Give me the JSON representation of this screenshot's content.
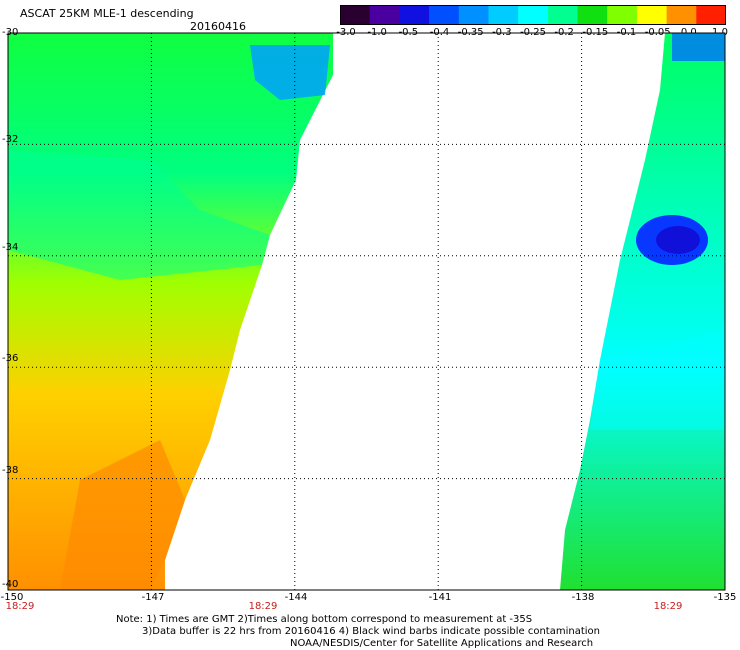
{
  "header": {
    "title": "ASCAT 25KM MLE-1 descending",
    "date": "20160416"
  },
  "colorbar": {
    "labels": [
      "-3.0",
      "-1.0",
      "-0.5",
      "-0.4",
      "-0.35",
      "-0.3",
      "-0.25",
      "-0.2",
      "-0.15",
      "-0.1",
      "-0.05",
      "0.0",
      "1.0"
    ],
    "colors": [
      "#2a0030",
      "#4a00a0",
      "#1010e0",
      "#0050ff",
      "#0090ff",
      "#00ccff",
      "#00ffff",
      "#00ff90",
      "#10e010",
      "#80ff00",
      "#ffff00",
      "#ff9000",
      "#ff2000"
    ]
  },
  "axes": {
    "lat_labels": [
      "-30",
      "-32",
      "-34",
      "-36",
      "-38",
      "-40"
    ],
    "lon_labels": [
      "-150",
      "-147",
      "-144",
      "-141",
      "-138",
      "-135"
    ],
    "time_labels": [
      "18:29",
      "18:29",
      "18:29"
    ]
  },
  "map_data": {
    "lon_range": [
      -150,
      -135
    ],
    "lat_range": [
      -40,
      -30
    ],
    "grid": "dotted",
    "swaths": [
      {
        "name": "west",
        "edge_lon_at_top": -143.5,
        "edge_lon_at_bottom": -146.7,
        "typical_value_north": "-0.2",
        "typical_value_south": "-0.05"
      },
      {
        "name": "east",
        "edge_lon_at_top": -136.0,
        "edge_lon_at_bottom": -138.5,
        "typical_value": "-0.2",
        "low_region_value": "-0.5"
      }
    ]
  },
  "notes": {
    "line1": "Note: 1) Times are GMT 2)Times along bottom correspond to measurement at -35S",
    "line2": "3)Data buffer is 22 hrs from 20160416 4) Black wind barbs indicate possible contamination",
    "line3": "NOAA/NESDIS/Center for Satellite Applications and Research"
  }
}
